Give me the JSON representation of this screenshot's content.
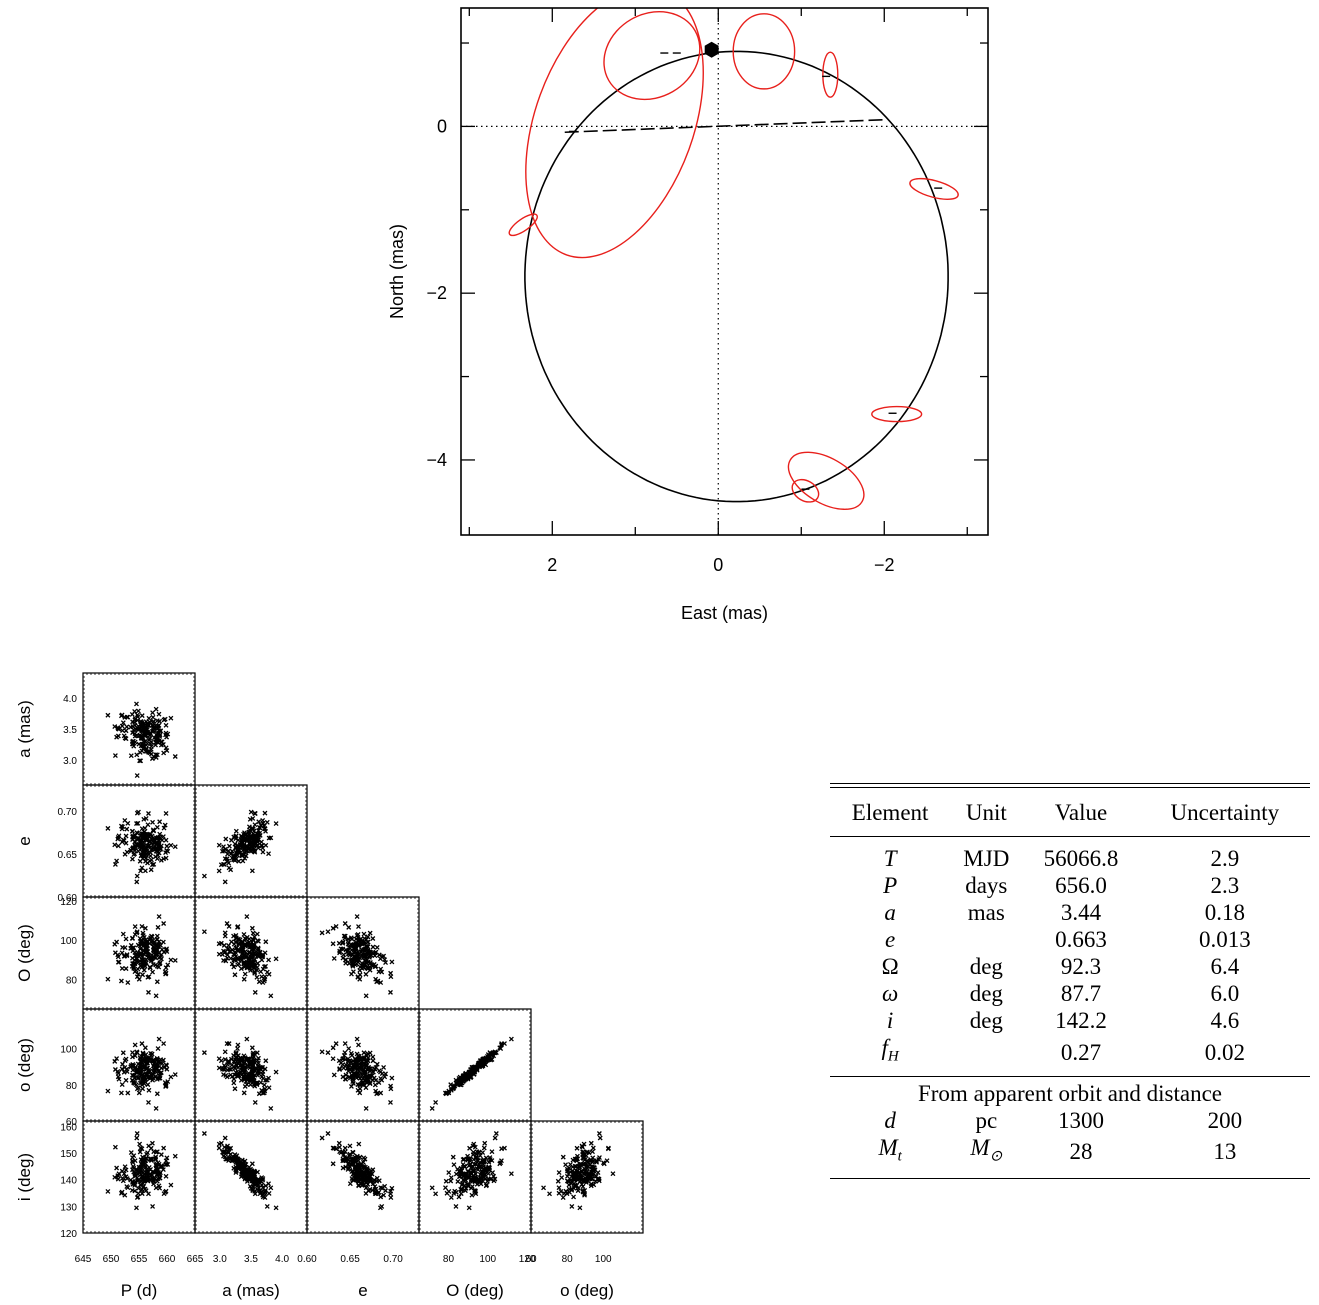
{
  "chart_data": [
    {
      "type": "scatter",
      "xlabel": "East (mas)",
      "ylabel": "North (mas)",
      "xlim": [
        3.1,
        -3.25
      ],
      "ylim": [
        -4.9,
        1.42
      ],
      "xticks": [
        2,
        0,
        -2
      ],
      "xtick_labels": [
        "2",
        "0",
        "−2"
      ],
      "yticks": [
        0,
        -2,
        -4
      ],
      "ytick_labels": [
        "0",
        "−2",
        "−4"
      ],
      "orbit": {
        "center": [
          -0.22,
          -1.8
        ],
        "rx": 2.55,
        "ry": 2.7,
        "arc_start_deg": 75,
        "arc_end_deg": 470
      },
      "node_line": [
        [
          1.85,
          -0.07
        ],
        [
          -2.0,
          0.08
        ]
      ],
      "star_position": [
        0.08,
        0.92
      ],
      "error_ellipses": [
        {
          "cx": 1.25,
          "cy": 0.05,
          "rx": 1.7,
          "ry": 0.95,
          "angle": 70
        },
        {
          "cx": 0.8,
          "cy": 0.85,
          "rx": 0.6,
          "ry": 0.5,
          "angle": 30
        },
        {
          "cx": -0.55,
          "cy": 0.9,
          "rx": 0.37,
          "ry": 0.45,
          "angle": 0
        },
        {
          "cx": -1.35,
          "cy": 0.62,
          "rx": 0.09,
          "ry": 0.27,
          "angle": 0
        },
        {
          "cx": 2.35,
          "cy": -1.18,
          "rx": 0.2,
          "ry": 0.07,
          "angle": 35
        },
        {
          "cx": -2.6,
          "cy": -0.75,
          "rx": 0.3,
          "ry": 0.1,
          "angle": -15
        },
        {
          "cx": -2.15,
          "cy": -3.45,
          "rx": 0.3,
          "ry": 0.09,
          "angle": 0
        },
        {
          "cx": -1.3,
          "cy": -4.25,
          "rx": 0.5,
          "ry": 0.27,
          "angle": -30
        },
        {
          "cx": -1.05,
          "cy": -4.37,
          "rx": 0.17,
          "ry": 0.12,
          "angle": -30
        }
      ],
      "residual_ticks": [
        {
          "x": 0.65,
          "y": 0.88
        },
        {
          "x": 0.5,
          "y": 0.88
        },
        {
          "x": 1.75,
          "y": -0.06
        },
        {
          "x": -1.3,
          "y": 0.6
        },
        {
          "x": -2.65,
          "y": -0.74
        },
        {
          "x": -2.1,
          "y": -3.44
        },
        {
          "x": -1.05,
          "y": -4.35
        }
      ],
      "colors": {
        "orbit": "#000000",
        "ellipse": "#e8201c"
      }
    },
    {
      "type": "scatter",
      "description": "corner plot of posterior samples",
      "params": [
        {
          "label": "P (d)",
          "lim": [
            645,
            665
          ],
          "ticks": [
            645,
            650,
            655,
            660,
            665
          ],
          "mean": 656.0,
          "sd": 2.3
        },
        {
          "label": "a (mas)",
          "lim": [
            2.6,
            4.4
          ],
          "ticks": [
            3.0,
            3.5,
            4.0
          ],
          "tick_labels": [
            "3.0",
            "3.5",
            "4.0"
          ],
          "mean": 3.44,
          "sd": 0.18
        },
        {
          "label": "e",
          "lim": [
            0.6,
            0.73
          ],
          "ticks": [
            0.6,
            0.65,
            0.7
          ],
          "tick_labels": [
            "0.60",
            "0.65",
            "0.70"
          ],
          "mean": 0.663,
          "sd": 0.013
        },
        {
          "label": "O (deg)",
          "lim": [
            65,
            122
          ],
          "ticks": [
            80,
            100,
            120
          ],
          "mean": 92.3,
          "sd": 6.4
        },
        {
          "label": "o (deg)",
          "lim": [
            60,
            122
          ],
          "ticks": [
            60,
            80,
            100
          ],
          "mean": 87.7,
          "sd": 6.0
        },
        {
          "label": "i (deg)",
          "lim": [
            120,
            162
          ],
          "ticks": [
            120,
            130,
            140,
            150,
            160
          ],
          "mean": 142.2,
          "sd": 4.6
        }
      ],
      "y_tick_labels": [
        [
          "3.0",
          "3.5",
          "4.0"
        ],
        [
          "0.60",
          "0.65",
          "0.70"
        ],
        [
          "80",
          "100",
          "120"
        ],
        [
          "60",
          "80",
          "100"
        ],
        [
          "120",
          "130",
          "140",
          "150",
          "160"
        ]
      ],
      "correlations": {
        "1-0": -0.2,
        "2-0": -0.1,
        "2-1": 0.6,
        "3-0": 0.0,
        "3-1": 0.05,
        "3-2": -0.45,
        "4-0": 0.0,
        "4-1": 0.05,
        "4-2": -0.45,
        "4-3": 0.98,
        "5-0": 0.05,
        "5-1": -0.95,
        "5-2": -0.6,
        "5-3": 0.0,
        "5-4": 0.0
      },
      "n_samples": 200
    }
  ],
  "table": {
    "headers": [
      "Element",
      "Unit",
      "Value",
      "Uncertainty"
    ],
    "rows": [
      {
        "sym": "T",
        "sub": "",
        "unit": "MJD",
        "value": "56066.8",
        "unc": "2.9",
        "italic": true
      },
      {
        "sym": "P",
        "sub": "",
        "unit": "days",
        "value": "656.0",
        "unc": "2.3",
        "italic": true
      },
      {
        "sym": "a",
        "sub": "",
        "unit": "mas",
        "value": "3.44",
        "unc": "0.18",
        "italic": true
      },
      {
        "sym": "e",
        "sub": "",
        "unit": "",
        "value": "0.663",
        "unc": "0.013",
        "italic": true
      },
      {
        "sym": "Ω",
        "sub": "",
        "unit": "deg",
        "value": "92.3",
        "unc": "6.4",
        "italic": false
      },
      {
        "sym": "ω",
        "sub": "",
        "unit": "deg",
        "value": "87.7",
        "unc": "6.0",
        "italic": true
      },
      {
        "sym": "i",
        "sub": "",
        "unit": "deg",
        "value": "142.2",
        "unc": "4.6",
        "italic": true
      },
      {
        "sym": "f",
        "sub": "H",
        "unit": "",
        "value": "0.27",
        "unc": "0.02",
        "italic": true
      }
    ],
    "section_title": "From apparent orbit and distance",
    "extra_rows": [
      {
        "sym": "d",
        "sub": "",
        "unit": "pc",
        "unit_sub": "",
        "value": "1300",
        "unc": "200"
      },
      {
        "sym": "M",
        "sub": "t",
        "unit": "M",
        "unit_sub": "⊙",
        "value": "28",
        "unc": "13"
      }
    ]
  }
}
